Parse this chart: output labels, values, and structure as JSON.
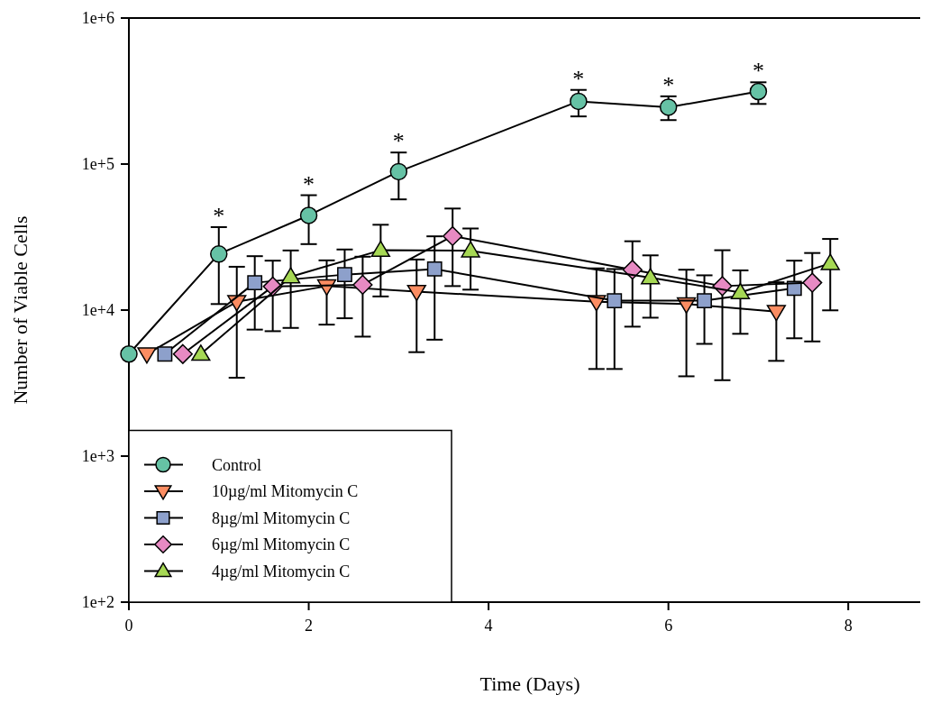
{
  "chart_data": {
    "type": "line",
    "xlabel": "Time (Days)",
    "ylabel": "Number of Viable Cells",
    "xlim": [
      0,
      8.8
    ],
    "xticks": [
      0,
      2,
      4,
      6,
      8
    ],
    "ylim": [
      100,
      1000000
    ],
    "yticks": [
      {
        "value": 100,
        "label": "1e+2"
      },
      {
        "value": 1000,
        "label": "1e+3"
      },
      {
        "value": 10000,
        "label": "1e+4"
      },
      {
        "value": 100000,
        "label": "1e+5"
      },
      {
        "value": 1000000,
        "label": "1e+6"
      }
    ],
    "log": true,
    "grid": false,
    "legend": "bottom left",
    "line_style": "solid",
    "series": [
      {
        "name": "Control",
        "color": "#66c2a5",
        "marker": "circle",
        "x": [
          0,
          1,
          2,
          3,
          5,
          6,
          7
        ],
        "values": [
          5000,
          24200,
          44500,
          88700,
          269000,
          245000,
          314000
        ],
        "errors": [
          null,
          [
            11000,
            37000
          ],
          [
            28300,
            61200
          ],
          [
            57300,
            120000
          ],
          [
            212000,
            322000
          ],
          [
            200000,
            291000
          ],
          [
            258000,
            363000
          ]
        ]
      },
      {
        "name": "10µg/ml Mitomycin C",
        "color": "#fc8d62",
        "marker": "triangle-down",
        "x": [
          0.2,
          1.2,
          2.2,
          3.2,
          5.2,
          6.2,
          7.2
        ],
        "values": [
          5000,
          11400,
          14600,
          13400,
          11400,
          11000,
          9770
        ],
        "errors": [
          null,
          [
            3440,
            19800
          ],
          [
            7950,
            21900
          ],
          [
            5150,
            22200
          ],
          [
            3950,
            19300
          ],
          [
            3520,
            18900
          ],
          [
            4490,
            15500
          ]
        ]
      },
      {
        "name": "8µg/ml Mitomycin C",
        "color": "#8da0cb",
        "marker": "square",
        "x": [
          0.4,
          1.4,
          2.4,
          3.4,
          5.4,
          6.4,
          7.4
        ],
        "values": [
          5000,
          15400,
          17500,
          19100,
          11600,
          11600,
          14100
        ],
        "errors": [
          null,
          [
            7350,
            23400
          ],
          [
            8790,
            26000
          ],
          [
            6270,
            32000
          ],
          [
            3950,
            19100
          ],
          [
            5870,
            17300
          ],
          [
            6410,
            21800
          ]
        ]
      },
      {
        "name": "6µg/ml Mitomycin C",
        "color": "#e78ac3",
        "marker": "diamond",
        "x": [
          0.6,
          1.6,
          2.6,
          3.6,
          5.6,
          6.6,
          7.6
        ],
        "values": [
          5000,
          14500,
          14900,
          32100,
          18900,
          14600,
          15400
        ],
        "errors": [
          null,
          [
            7170,
            21800
          ],
          [
            6580,
            23200
          ],
          [
            14600,
            49600
          ],
          [
            7700,
            29600
          ],
          [
            3310,
            25700
          ],
          [
            6100,
            24600
          ]
        ]
      },
      {
        "name": "4µg/ml Mitomycin C",
        "color": "#a6d854",
        "marker": "triangle",
        "x": [
          0.8,
          1.8,
          2.8,
          3.8,
          5.8,
          6.8,
          7.8
        ],
        "values": [
          5000,
          16900,
          25700,
          25500,
          16700,
          13200,
          20900
        ],
        "errors": [
          null,
          [
            7550,
            25600
          ],
          [
            12400,
            38400
          ],
          [
            13800,
            36200
          ],
          [
            8870,
            23700
          ],
          [
            6880,
            18700
          ],
          [
            9960,
            30700
          ]
        ]
      }
    ],
    "annotations": [
      {
        "text": "*",
        "x": 1,
        "y": 37000
      },
      {
        "text": "*",
        "x": 2,
        "y": 61200
      },
      {
        "text": "*",
        "x": 3,
        "y": 120000
      },
      {
        "text": "*",
        "x": 5,
        "y": 322000
      },
      {
        "text": "*",
        "x": 6,
        "y": 291000
      },
      {
        "text": "*",
        "x": 7,
        "y": 363000
      }
    ]
  }
}
